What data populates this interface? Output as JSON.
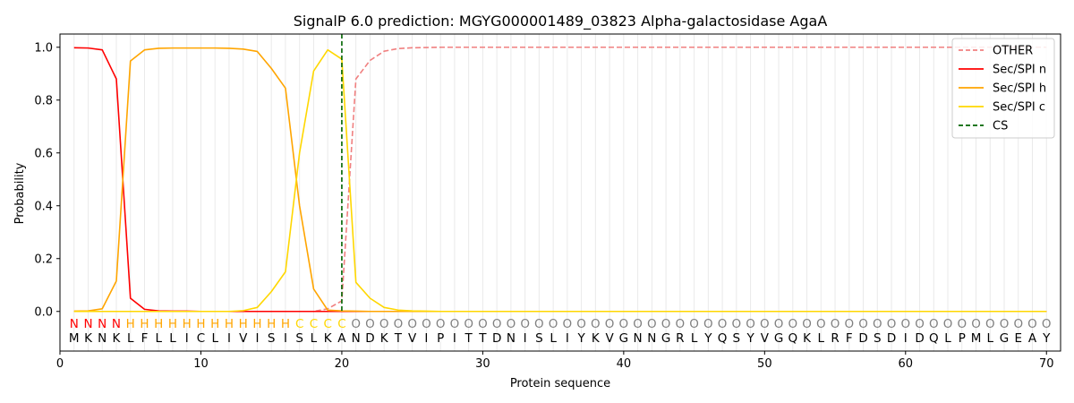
{
  "chart_data": {
    "type": "line",
    "title": "SignalP 6.0 prediction: MGYG000001489_03823 Alpha-galactosidase AgaA",
    "xlabel": "Protein sequence",
    "ylabel": "Probability",
    "xlim": [
      0,
      71
    ],
    "ylim": [
      -0.15,
      1.05
    ],
    "xticks": [
      0,
      10,
      20,
      30,
      40,
      50,
      60,
      70
    ],
    "yticks": [
      0.0,
      0.2,
      0.4,
      0.6,
      0.8,
      1.0
    ],
    "x": [
      1,
      2,
      3,
      4,
      5,
      6,
      7,
      8,
      9,
      10,
      11,
      12,
      13,
      14,
      15,
      16,
      17,
      18,
      19,
      20,
      21,
      22,
      23,
      24,
      25,
      26,
      27,
      28,
      29,
      30,
      31,
      32,
      33,
      34,
      35,
      36,
      37,
      38,
      39,
      40,
      41,
      42,
      43,
      44,
      45,
      46,
      47,
      48,
      49,
      50,
      51,
      52,
      53,
      54,
      55,
      56,
      57,
      58,
      59,
      60,
      61,
      62,
      63,
      64,
      65,
      66,
      67,
      68,
      69,
      70
    ],
    "sequence": [
      "M",
      "K",
      "N",
      "K",
      "L",
      "F",
      "L",
      "L",
      "I",
      "C",
      "L",
      "I",
      "V",
      "I",
      "S",
      "I",
      "S",
      "L",
      "K",
      "A",
      "N",
      "D",
      "K",
      "T",
      "V",
      "I",
      "P",
      "I",
      "T",
      "T",
      "D",
      "N",
      "I",
      "S",
      "L",
      "I",
      "Y",
      "K",
      "V",
      "G",
      "N",
      "N",
      "G",
      "R",
      "L",
      "Y",
      "Q",
      "S",
      "Y",
      "V",
      "G",
      "Q",
      "K",
      "L",
      "R",
      "F",
      "D",
      "S",
      "D",
      "I",
      "D",
      "Q",
      "L",
      "P",
      "M",
      "L",
      "G",
      "E",
      "A",
      "Y"
    ],
    "labels": [
      "N",
      "N",
      "N",
      "N",
      "H",
      "H",
      "H",
      "H",
      "H",
      "H",
      "H",
      "H",
      "H",
      "H",
      "H",
      "H",
      "C",
      "C",
      "C",
      "C",
      "O",
      "O",
      "O",
      "O",
      "O",
      "O",
      "O",
      "O",
      "O",
      "O",
      "O",
      "O",
      "O",
      "O",
      "O",
      "O",
      "O",
      "O",
      "O",
      "O",
      "O",
      "O",
      "O",
      "O",
      "O",
      "O",
      "O",
      "O",
      "O",
      "O",
      "O",
      "O",
      "O",
      "O",
      "O",
      "O",
      "O",
      "O",
      "O",
      "O",
      "O",
      "O",
      "O",
      "O",
      "O",
      "O",
      "O",
      "O",
      "O",
      "O"
    ],
    "label_colors": {
      "N": "#ff0000",
      "H": "#ffa500",
      "C": "#ffd700",
      "O": "#808080"
    },
    "series": [
      {
        "name": "OTHER",
        "color": "#f08080",
        "dash": true,
        "values": [
          0,
          0,
          0,
          0,
          0,
          0,
          0,
          0,
          0,
          0,
          0,
          0,
          0,
          0,
          0,
          0,
          0,
          0,
          0.01,
          0.04,
          0.88,
          0.95,
          0.985,
          0.995,
          0.998,
          0.999,
          1,
          1,
          1,
          1,
          1,
          1,
          1,
          1,
          1,
          1,
          1,
          1,
          1,
          1,
          1,
          1,
          1,
          1,
          1,
          1,
          1,
          1,
          1,
          1,
          1,
          1,
          1,
          1,
          1,
          1,
          1,
          1,
          1,
          1,
          1,
          1,
          1,
          1,
          1,
          1,
          1,
          1,
          1,
          1
        ]
      },
      {
        "name": "Sec/SPI n",
        "color": "#ff0000",
        "dash": false,
        "values": [
          0.998,
          0.997,
          0.99,
          0.88,
          0.05,
          0.008,
          0.002,
          0.001,
          0.001,
          0,
          0,
          0,
          0,
          0,
          0,
          0,
          0,
          0,
          0,
          0,
          0,
          0,
          0,
          0,
          0,
          0,
          0,
          0,
          0,
          0,
          0,
          0,
          0,
          0,
          0,
          0,
          0,
          0,
          0,
          0,
          0,
          0,
          0,
          0,
          0,
          0,
          0,
          0,
          0,
          0,
          0,
          0,
          0,
          0,
          0,
          0,
          0,
          0,
          0,
          0,
          0,
          0,
          0,
          0,
          0,
          0,
          0,
          0,
          0,
          0
        ]
      },
      {
        "name": "Sec/SPI h",
        "color": "#ffa500",
        "dash": false,
        "values": [
          0.001,
          0.002,
          0.01,
          0.115,
          0.948,
          0.99,
          0.996,
          0.997,
          0.997,
          0.997,
          0.997,
          0.996,
          0.993,
          0.984,
          0.92,
          0.845,
          0.4,
          0.085,
          0.005,
          0.002,
          0.001,
          0,
          0,
          0,
          0,
          0,
          0,
          0,
          0,
          0,
          0,
          0,
          0,
          0,
          0,
          0,
          0,
          0,
          0,
          0,
          0,
          0,
          0,
          0,
          0,
          0,
          0,
          0,
          0,
          0,
          0,
          0,
          0,
          0,
          0,
          0,
          0,
          0,
          0,
          0,
          0,
          0,
          0,
          0,
          0,
          0,
          0,
          0,
          0,
          0
        ]
      },
      {
        "name": "Sec/SPI c",
        "color": "#ffd700",
        "dash": false,
        "values": [
          0,
          0,
          0,
          0,
          0,
          0,
          0,
          0,
          0,
          0,
          0,
          0,
          0.003,
          0.015,
          0.075,
          0.15,
          0.6,
          0.91,
          0.99,
          0.955,
          0.11,
          0.05,
          0.015,
          0.005,
          0.002,
          0.001,
          0,
          0,
          0,
          0,
          0,
          0,
          0,
          0,
          0,
          0,
          0,
          0,
          0,
          0,
          0,
          0,
          0,
          0,
          0,
          0,
          0,
          0,
          0,
          0,
          0,
          0,
          0,
          0,
          0,
          0,
          0,
          0,
          0,
          0,
          0,
          0,
          0,
          0,
          0,
          0,
          0,
          0,
          0,
          0
        ]
      }
    ],
    "cs_marker": {
      "name": "CS",
      "x": 20,
      "color": "#006400"
    },
    "legend_entries": [
      "OTHER",
      "Sec/SPI n",
      "Sec/SPI h",
      "Sec/SPI c",
      "CS"
    ],
    "legend_position": "top-right",
    "grid": "vertical"
  }
}
